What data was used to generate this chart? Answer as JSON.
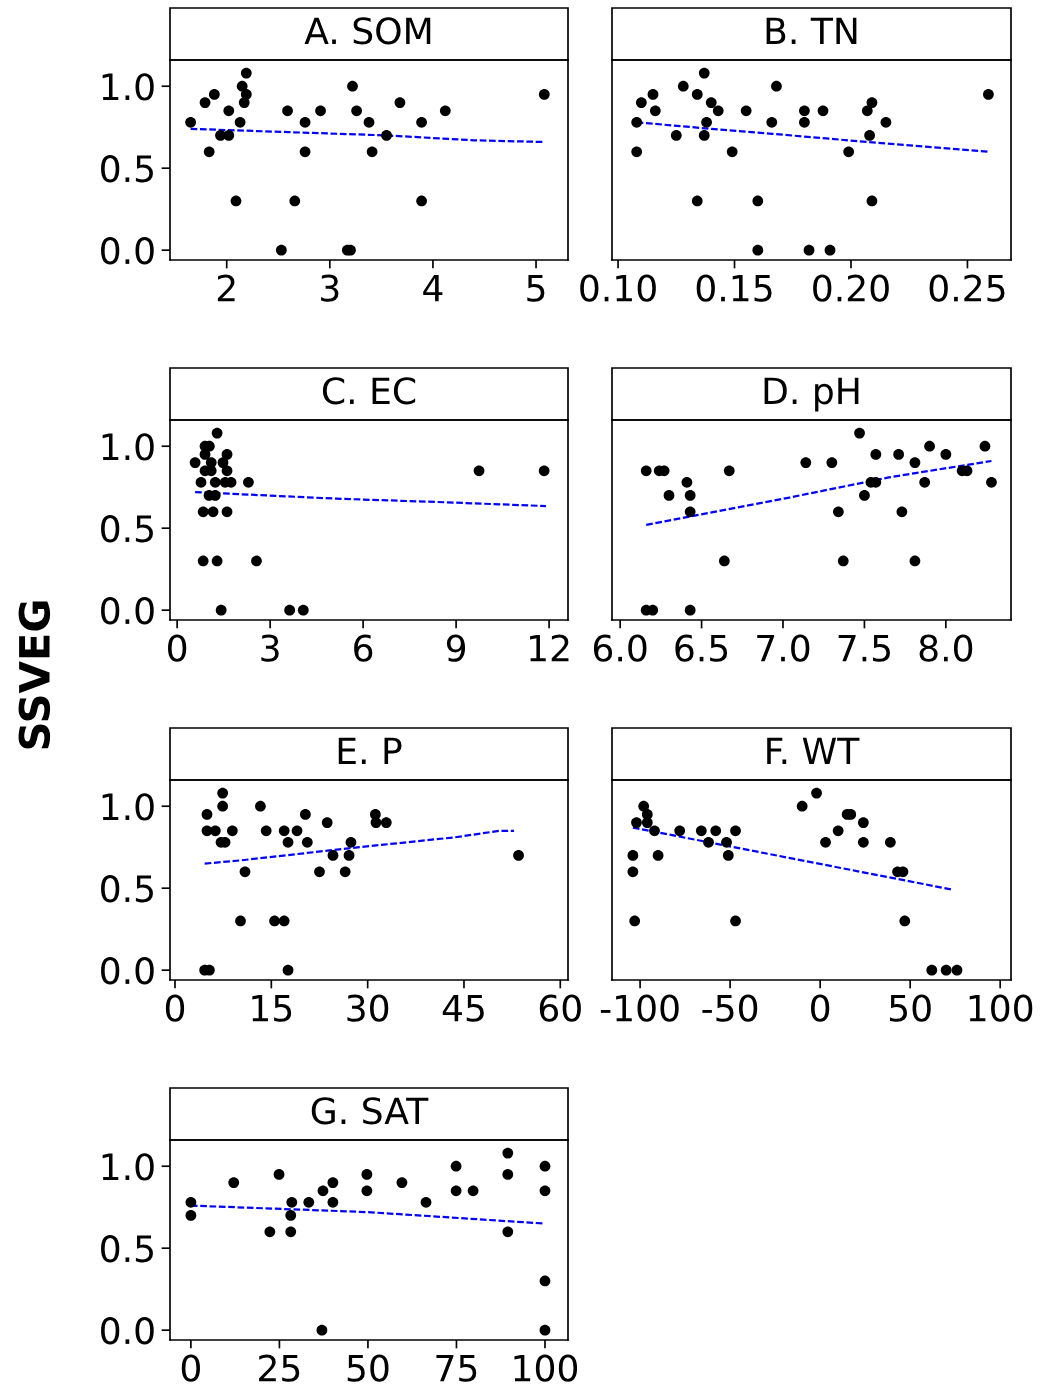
{
  "chart_data": [
    {
      "type": "scatter",
      "title": "A. SOM",
      "xlim": [
        1.45,
        5.31
      ],
      "ylim": [
        -0.06,
        1.16
      ],
      "xticks": [
        2,
        3,
        4,
        5
      ],
      "yticks": [
        {
          "value": 0,
          "label": "0.0"
        },
        {
          "value": 0.5,
          "label": "0.5"
        },
        {
          "value": 1,
          "label": "1.0"
        }
      ],
      "series": [
        {
          "type": "scatter",
          "color": "#000000",
          "marker": "circle",
          "x": [
            1.65,
            1.79,
            1.88,
            1.83,
            1.94,
            2.02,
            2.02,
            2.09,
            2.13,
            2.15,
            2.19,
            2.19,
            2.17,
            2.53,
            2.59,
            2.66,
            2.76,
            2.76,
            2.91,
            3.17,
            3.2,
            3.22,
            3.26,
            3.38,
            3.41,
            3.55,
            3.68,
            3.89,
            3.89,
            4.12,
            5.08
          ],
          "values": [
            0.78,
            0.9,
            0.95,
            0.6,
            0.7,
            0.7,
            0.85,
            0.3,
            0.78,
            1.0,
            1.08,
            0.95,
            0.9,
            0,
            0.85,
            0.3,
            0.78,
            0.6,
            0.85,
            0,
            0,
            1.0,
            0.85,
            0.78,
            0.6,
            0.7,
            0.9,
            0.78,
            0.3,
            0.85,
            0.95
          ]
        },
        {
          "type": "line",
          "color": "#0000ff",
          "line_style": "dashed",
          "x": [
            1.65,
            2.6,
            3.55,
            4.4,
            5.08
          ],
          "values": [
            0.74,
            0.72,
            0.7,
            0.67,
            0.66
          ]
        }
      ]
    },
    {
      "type": "scatter",
      "title": "B. TN",
      "tick_labels": "x",
      "xlim": [
        0.0974,
        0.2687
      ],
      "ylim": [
        -0.06,
        1.16
      ],
      "xticks": [
        {
          "value": 0.1,
          "label": "0.10"
        },
        {
          "value": 0.15,
          "label": "0.15"
        },
        {
          "value": 0.2,
          "label": "0.20"
        },
        {
          "value": 0.25,
          "label": "0.25"
        }
      ],
      "series": [
        {
          "type": "scatter",
          "color": "#000000",
          "marker": "circle",
          "x": [
            0.108,
            0.11,
            0.108,
            0.115,
            0.116,
            0.125,
            0.128,
            0.134,
            0.137,
            0.134,
            0.137,
            0.138,
            0.14,
            0.143,
            0.149,
            0.155,
            0.16,
            0.16,
            0.166,
            0.168,
            0.18,
            0.18,
            0.182,
            0.188,
            0.191,
            0.199,
            0.207,
            0.209,
            0.208,
            0.209,
            0.215,
            0.259
          ],
          "values": [
            0.78,
            0.9,
            0.6,
            0.95,
            0.85,
            0.7,
            1.0,
            0.95,
            1.08,
            0.3,
            0.7,
            0.78,
            0.9,
            0.85,
            0.6,
            0.85,
            0.3,
            0,
            0.78,
            1.0,
            0.85,
            0.78,
            0,
            0.85,
            0,
            0.6,
            0.85,
            0.9,
            0.7,
            0.3,
            0.78,
            0.95
          ]
        },
        {
          "type": "line",
          "color": "#0000ff",
          "line_style": "dashed",
          "x": [
            0.108,
            0.14,
            0.166,
            0.207,
            0.259
          ],
          "values": [
            0.78,
            0.74,
            0.71,
            0.66,
            0.6
          ]
        }
      ]
    },
    {
      "type": "scatter",
      "title": "C. EC",
      "ylabel": "SSVEG",
      "xlim": [
        -0.23,
        12.61
      ],
      "ylim": [
        -0.06,
        1.16
      ],
      "xticks": [
        0,
        3,
        6,
        9,
        12
      ],
      "yticks": [
        {
          "value": 0,
          "label": "0.0"
        },
        {
          "value": 0.5,
          "label": "0.5"
        },
        {
          "value": 1,
          "label": "1.0"
        }
      ],
      "series": [
        {
          "type": "scatter",
          "color": "#000000",
          "marker": "circle",
          "x": [
            1.29,
            0.9,
            1.04,
            0.9,
            1.61,
            0.58,
            1.1,
            1.48,
            0.9,
            1.1,
            1.61,
            9.74,
            11.84,
            0.77,
            1.23,
            1.55,
            1.74,
            2.3,
            1.03,
            1.23,
            0.84,
            1.16,
            1.61,
            0.84,
            1.29,
            2.56,
            1.42,
            3.63,
            4.07
          ],
          "values": [
            1.08,
            1.0,
            1.0,
            0.95,
            0.95,
            0.9,
            0.9,
            0.9,
            0.85,
            0.85,
            0.85,
            0.85,
            0.85,
            0.78,
            0.78,
            0.78,
            0.78,
            0.78,
            0.7,
            0.7,
            0.6,
            0.6,
            0.6,
            0.3,
            0.3,
            0.3,
            0,
            0,
            0
          ]
        },
        {
          "type": "line",
          "color": "#0000ff",
          "line_style": "dashed",
          "x": [
            0.58,
            5.15,
            8.37,
            11.9
          ],
          "values": [
            0.72,
            0.68,
            0.66,
            0.635
          ]
        }
      ]
    },
    {
      "type": "scatter",
      "title": "D. pH",
      "tick_labels": "x",
      "xlim": [
        5.95,
        8.4
      ],
      "ylim": [
        -0.06,
        1.16
      ],
      "xticks": [
        {
          "value": 6,
          "label": "6.0"
        },
        {
          "value": 6.5,
          "label": "6.5"
        },
        {
          "value": 7,
          "label": "7.0"
        },
        {
          "value": 7.5,
          "label": "7.5"
        },
        {
          "value": 8,
          "label": "8.0"
        }
      ],
      "series": [
        {
          "type": "scatter",
          "color": "#000000",
          "marker": "circle",
          "x": [
            6.16,
            6.24,
            6.27,
            6.41,
            6.3,
            6.43,
            6.43,
            6.67,
            6.64,
            6.16,
            6.2,
            6.43,
            7.14,
            7.3,
            7.34,
            7.37,
            7.47,
            7.5,
            7.54,
            7.57,
            7.57,
            7.71,
            7.73,
            7.81,
            7.81,
            7.87,
            7.9,
            8.0,
            8.1,
            8.13,
            8.24,
            8.28
          ],
          "values": [
            0.85,
            0.85,
            0.85,
            0.78,
            0.7,
            0.7,
            0.6,
            0.85,
            0.3,
            0,
            0,
            0,
            0.9,
            0.9,
            0.6,
            0.3,
            1.08,
            0.7,
            0.78,
            0.78,
            0.95,
            0.95,
            0.6,
            0.9,
            0.3,
            0.78,
            1.0,
            0.95,
            0.85,
            0.85,
            1.0,
            0.78
          ]
        },
        {
          "type": "line",
          "color": "#0000ff",
          "line_style": "dashed",
          "x": [
            6.16,
            7.04,
            7.65,
            8.28
          ],
          "values": [
            0.52,
            0.687,
            0.81,
            0.91
          ]
        }
      ]
    },
    {
      "type": "scatter",
      "title": "E. P",
      "xlim": [
        -0.78,
        61.2
      ],
      "ylim": [
        -0.06,
        1.16
      ],
      "xticks": [
        0,
        15,
        30,
        45,
        60
      ],
      "yticks": [
        {
          "value": 0,
          "label": "0.0"
        },
        {
          "value": 0.5,
          "label": "0.5"
        },
        {
          "value": 1,
          "label": "1.0"
        }
      ],
      "series": [
        {
          "type": "scatter",
          "color": "#000000",
          "marker": "circle",
          "x": [
            4.98,
            7.42,
            7.42,
            13.3,
            20.3,
            23.7,
            31.2,
            31.3,
            32.9,
            4.98,
            6.28,
            8.93,
            14.2,
            17.0,
            19.0,
            7.17,
            7.79,
            17.6,
            20.6,
            27.4,
            24.6,
            27.1,
            53.5,
            10.9,
            22.5,
            26.5,
            10.2,
            15.5,
            17.0,
            4.62,
            5.35,
            17.6
          ],
          "values": [
            0.95,
            1.08,
            1.0,
            1.0,
            0.95,
            0.9,
            0.95,
            0.9,
            0.9,
            0.85,
            0.85,
            0.85,
            0.85,
            0.85,
            0.85,
            0.78,
            0.78,
            0.78,
            0.78,
            0.78,
            0.7,
            0.7,
            0.7,
            0.6,
            0.6,
            0.6,
            0.3,
            0.3,
            0.3,
            0,
            0,
            0
          ]
        },
        {
          "type": "line",
          "color": "#0000ff",
          "line_style": "dashed",
          "x": [
            4.62,
            10.3,
            27.4,
            43.5,
            50.5,
            52.8
          ],
          "values": [
            0.65,
            0.67,
            0.745,
            0.81,
            0.85,
            0.85
          ]
        }
      ]
    },
    {
      "type": "scatter",
      "title": "F. WT",
      "tick_labels": "x",
      "xlim": [
        -115.6,
        106
      ],
      "ylim": [
        -0.06,
        1.16
      ],
      "xticks": [
        {
          "value": -100,
          "label": "-100"
        },
        {
          "value": -50,
          "label": "-50"
        },
        0,
        50,
        100
      ],
      "series": [
        {
          "type": "scatter",
          "color": "#000000",
          "marker": "circle",
          "x": [
            -104,
            -104,
            -103,
            -102,
            -98,
            -96,
            -96,
            -92,
            -90,
            -78,
            -66,
            -62,
            -58,
            -52,
            -51,
            -47,
            -47,
            -10,
            -2,
            3,
            10,
            15,
            17,
            24,
            24,
            39,
            43,
            46,
            47,
            62,
            70,
            76
          ],
          "values": [
            0.7,
            0.6,
            0.3,
            0.9,
            1.0,
            0.95,
            0.9,
            0.85,
            0.7,
            0.85,
            0.85,
            0.78,
            0.85,
            0.78,
            0.7,
            0.85,
            0.3,
            1.0,
            1.08,
            0.78,
            0.85,
            0.95,
            0.95,
            0.9,
            0.78,
            0.78,
            0.6,
            0.6,
            0.3,
            0,
            0,
            0
          ]
        },
        {
          "type": "line",
          "color": "#0000ff",
          "line_style": "dashed",
          "x": [
            -104,
            -15,
            74
          ],
          "values": [
            0.87,
            0.68,
            0.49
          ]
        }
      ]
    },
    {
      "type": "scatter",
      "title": "G. SAT",
      "xlim": [
        -5.9,
        106.5
      ],
      "ylim": [
        -0.06,
        1.16
      ],
      "xticks": [
        0,
        25,
        50,
        75,
        100
      ],
      "yticks": [
        {
          "value": 0,
          "label": "0.0"
        },
        {
          "value": 0.5,
          "label": "0.5"
        },
        {
          "value": 1,
          "label": "1.0"
        }
      ],
      "series": [
        {
          "type": "scatter",
          "color": "#000000",
          "marker": "circle",
          "x": [
            0,
            0,
            12.1,
            22.3,
            24.9,
            28.5,
            28.2,
            28.2,
            33.3,
            37,
            37.3,
            40.1,
            40.1,
            49.7,
            49.7,
            59.6,
            66.4,
            74.9,
            74.9,
            79.7,
            89.5,
            89.5,
            89.5,
            100,
            100,
            100,
            100
          ],
          "values": [
            0.78,
            0.7,
            0.9,
            0.6,
            0.95,
            0.78,
            0.7,
            0.6,
            0.78,
            0,
            0.85,
            0.78,
            0.9,
            0.95,
            0.85,
            0.9,
            0.78,
            1.0,
            0.85,
            0.85,
            1.08,
            0.95,
            0.6,
            1.0,
            0.85,
            0.3,
            0
          ]
        },
        {
          "type": "line",
          "color": "#0000ff",
          "line_style": "dashed",
          "x": [
            0,
            50,
            100
          ],
          "values": [
            0.76,
            0.72,
            0.65
          ]
        }
      ]
    }
  ]
}
